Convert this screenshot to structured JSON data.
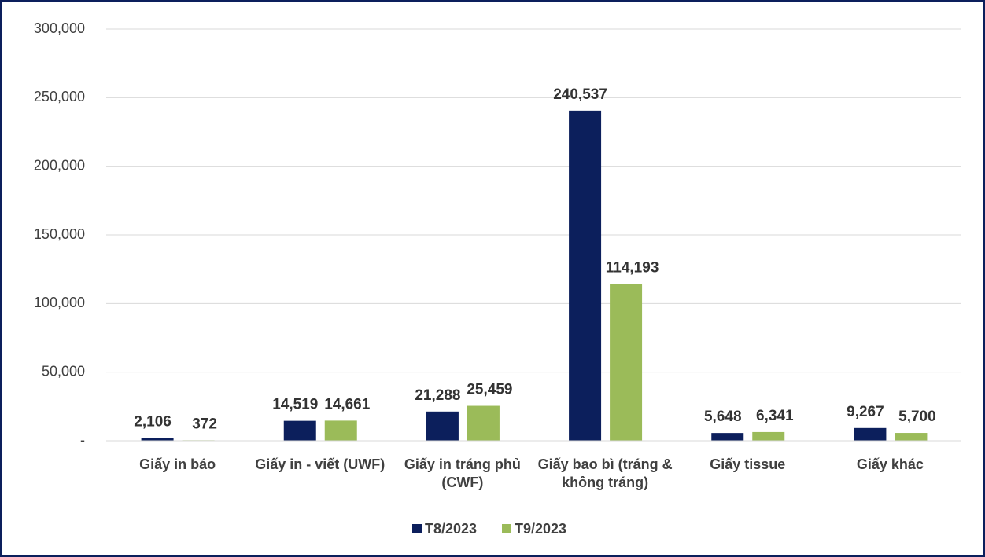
{
  "chart_data": {
    "type": "bar",
    "categories": [
      "Giấy in báo",
      "Giấy in - viết (UWF)",
      "Giấy in tráng phủ (CWF)",
      "Giấy bao bì (tráng & không tráng)",
      "Giấy tissue",
      "Giấy khác"
    ],
    "series": [
      {
        "name": "T8/2023",
        "color": "#0c1f5c",
        "values": [
          2106,
          14519,
          21288,
          240537,
          5648,
          9267
        ],
        "value_labels": [
          "2,106",
          "14,519",
          "21,288",
          "240,537",
          "5,648",
          "9,267"
        ]
      },
      {
        "name": "T9/2023",
        "color": "#9bbb59",
        "values": [
          372,
          14661,
          25459,
          114193,
          6341,
          5700
        ],
        "value_labels": [
          "372",
          "14,661",
          "25,459",
          "114,193",
          "6,341",
          "5,700"
        ]
      }
    ],
    "ylim": [
      0,
      300000
    ],
    "yticks": [
      {
        "value": 0,
        "label": "-"
      },
      {
        "value": 50000,
        "label": "50,000"
      },
      {
        "value": 100000,
        "label": "100,000"
      },
      {
        "value": 150000,
        "label": "150,000"
      },
      {
        "value": 200000,
        "label": "200,000"
      },
      {
        "value": 250000,
        "label": "250,000"
      },
      {
        "value": 300000,
        "label": "300,000"
      }
    ],
    "grid": true,
    "legend": "bottom"
  }
}
